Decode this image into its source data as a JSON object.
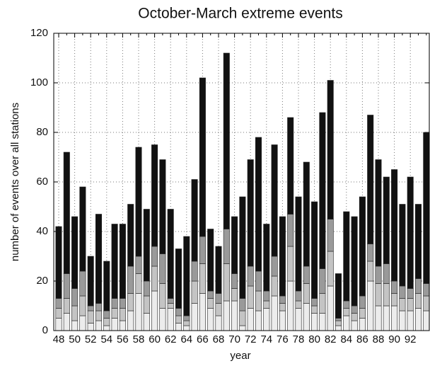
{
  "chart_data": {
    "type": "stacked_bar",
    "title": "October-March extreme events",
    "x_label": "year",
    "y_label": "number of events over all stations",
    "categories": [
      "48",
      null,
      "50",
      null,
      "52",
      null,
      "54",
      null,
      "56",
      null,
      "58",
      null,
      "60",
      null,
      "62",
      null,
      "64",
      null,
      "66",
      null,
      "68",
      null,
      "70",
      null,
      "72",
      null,
      "74",
      null,
      "76",
      null,
      "78",
      null,
      "80",
      null,
      "82",
      null,
      "84",
      null,
      "86",
      null,
      "88",
      null,
      "90",
      null,
      "92",
      null,
      null
    ],
    "series": [
      {
        "color": "#ececec",
        "values": [
          5,
          7,
          4,
          6,
          3,
          4,
          2,
          5,
          4,
          8,
          15,
          7,
          16,
          9,
          9,
          3,
          2,
          11,
          15,
          9,
          6,
          12,
          12,
          2,
          9,
          8,
          9,
          14,
          8,
          20,
          9,
          11,
          7,
          7,
          18,
          2,
          6,
          4,
          5,
          20,
          10,
          10,
          10,
          8,
          8,
          9,
          8
        ]
      },
      {
        "color": "#c4c4c4",
        "values": [
          4,
          6,
          6,
          8,
          5,
          4,
          3,
          4,
          5,
          7,
          8,
          7,
          10,
          10,
          2,
          3,
          2,
          9,
          12,
          4,
          5,
          15,
          5,
          6,
          9,
          8,
          3,
          8,
          3,
          14,
          3,
          8,
          3,
          8,
          14,
          2,
          3,
          3,
          4,
          8,
          9,
          9,
          5,
          5,
          5,
          6,
          6
        ]
      },
      {
        "color": "#9a9a9a",
        "values": [
          4,
          10,
          7,
          10,
          2,
          3,
          3,
          4,
          4,
          11,
          7,
          6,
          8,
          12,
          2,
          3,
          2,
          8,
          11,
          3,
          4,
          14,
          6,
          5,
          8,
          8,
          4,
          8,
          3,
          13,
          4,
          7,
          3,
          10,
          13,
          1,
          3,
          3,
          5,
          7,
          7,
          8,
          5,
          5,
          4,
          6,
          5
        ]
      },
      {
        "color": "#111111",
        "values": [
          29,
          49,
          29,
          34,
          20,
          36,
          20,
          30,
          30,
          25,
          44,
          29,
          41,
          38,
          36,
          24,
          32,
          33,
          64,
          25,
          19,
          71,
          23,
          41,
          43,
          54,
          27,
          45,
          32,
          39,
          38,
          42,
          39,
          63,
          56,
          18,
          36,
          36,
          40,
          52,
          43,
          35,
          45,
          33,
          45,
          30,
          61
        ]
      }
    ],
    "ylim": [
      0,
      120
    ],
    "yticks": [
      0,
      20,
      40,
      60,
      80,
      100,
      120
    ],
    "grid": true
  }
}
